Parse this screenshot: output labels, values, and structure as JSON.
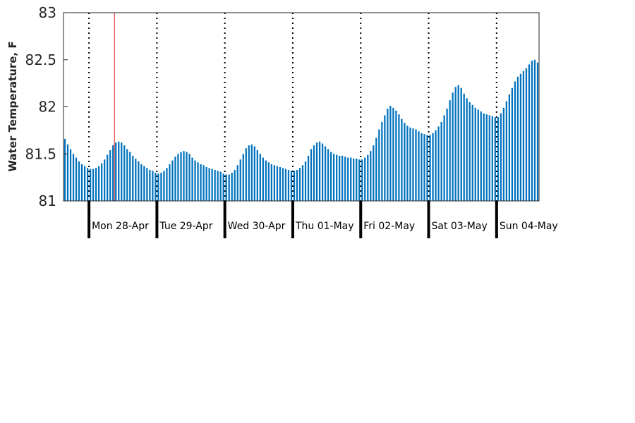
{
  "chart_data": {
    "type": "bar",
    "title": "",
    "xlabel": "",
    "ylabel": "Water Temperature, F",
    "ylim": [
      81,
      83
    ],
    "yticks": [
      "81",
      "81.5",
      "82",
      "82.5",
      "83"
    ],
    "grid": false,
    "day_labels": [
      "Mon 28-Apr",
      "Tue 29-Apr",
      "Wed 30-Apr",
      "Thu 01-May",
      "Fri 02-May",
      "Sat 03-May",
      "Sun 04-May"
    ],
    "bar_color": "#0072BD",
    "marker_color": "#d62728",
    "day_boundary_style": "dotted",
    "hours_before_first_day": 9,
    "current_time_hour": 18,
    "values": [
      81.66,
      81.6,
      81.55,
      81.5,
      81.46,
      81.42,
      81.39,
      81.37,
      81.35,
      81.34,
      81.34,
      81.35,
      81.37,
      81.4,
      81.44,
      81.49,
      81.54,
      81.59,
      81.62,
      81.63,
      81.62,
      81.59,
      81.55,
      81.52,
      81.48,
      81.45,
      81.42,
      81.39,
      81.37,
      81.35,
      81.33,
      81.32,
      81.3,
      81.29,
      81.3,
      81.32,
      81.35,
      81.39,
      81.43,
      81.47,
      81.5,
      81.52,
      81.53,
      81.52,
      81.5,
      81.46,
      81.43,
      81.41,
      81.39,
      81.38,
      81.36,
      81.35,
      81.34,
      81.33,
      81.32,
      81.31,
      81.29,
      81.28,
      81.28,
      81.3,
      81.33,
      81.38,
      81.44,
      81.5,
      81.56,
      81.59,
      81.6,
      81.58,
      81.54,
      81.5,
      81.46,
      81.43,
      81.41,
      81.39,
      81.38,
      81.37,
      81.36,
      81.35,
      81.34,
      81.33,
      81.32,
      81.32,
      81.33,
      81.35,
      81.38,
      81.42,
      81.48,
      81.55,
      81.59,
      81.62,
      81.63,
      81.61,
      81.58,
      81.55,
      81.52,
      81.5,
      81.49,
      81.48,
      81.48,
      81.47,
      81.46,
      81.46,
      81.45,
      81.45,
      81.44,
      81.44,
      81.46,
      81.49,
      81.53,
      81.59,
      81.67,
      81.76,
      81.84,
      81.91,
      81.98,
      82.01,
      81.99,
      81.96,
      81.92,
      81.87,
      81.83,
      81.8,
      81.78,
      81.77,
      81.76,
      81.74,
      81.72,
      81.71,
      81.7,
      81.7,
      81.72,
      81.75,
      81.79,
      81.84,
      81.91,
      81.98,
      82.07,
      82.15,
      82.21,
      82.23,
      82.2,
      82.14,
      82.09,
      82.05,
      82.02,
      81.99,
      81.97,
      81.95,
      81.93,
      81.92,
      81.91,
      81.9,
      81.89,
      81.89,
      81.93,
      81.99,
      82.06,
      82.13,
      82.2,
      82.27,
      82.32,
      82.35,
      82.38,
      82.41,
      82.45,
      82.49,
      82.5,
      82.47
    ]
  }
}
